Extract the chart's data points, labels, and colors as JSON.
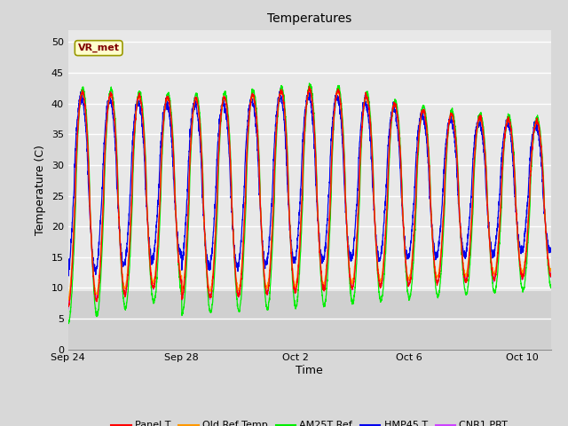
{
  "title": "Temperatures",
  "xlabel": "Time",
  "ylabel": "Temperature (C)",
  "ylim": [
    0,
    52
  ],
  "yticks": [
    0,
    5,
    10,
    15,
    20,
    25,
    30,
    35,
    40,
    45,
    50
  ],
  "background_color": "#d8d8d8",
  "plot_bg_color_upper": "#e8e8e8",
  "plot_bg_color_lower": "#c8c8c8",
  "grid_color": "#ffffff",
  "annotation_text": "VR_met",
  "annotation_box_color": "#ffffcc",
  "annotation_text_color": "#800000",
  "annotation_border_color": "#999900",
  "series_colors": {
    "Panel T": "#ff0000",
    "Old Ref Temp": "#ff9900",
    "AM25T Ref": "#00ee00",
    "HMP45 T": "#0000ee",
    "CNR1 PRT": "#cc44ff"
  },
  "x_tick_labels": [
    "Sep 24",
    "Sep 28",
    "Oct 2",
    "Oct 6",
    "Oct 10"
  ],
  "x_tick_positions": [
    0,
    4,
    8,
    12,
    16
  ],
  "figsize": [
    6.4,
    4.8
  ],
  "dpi": 100
}
